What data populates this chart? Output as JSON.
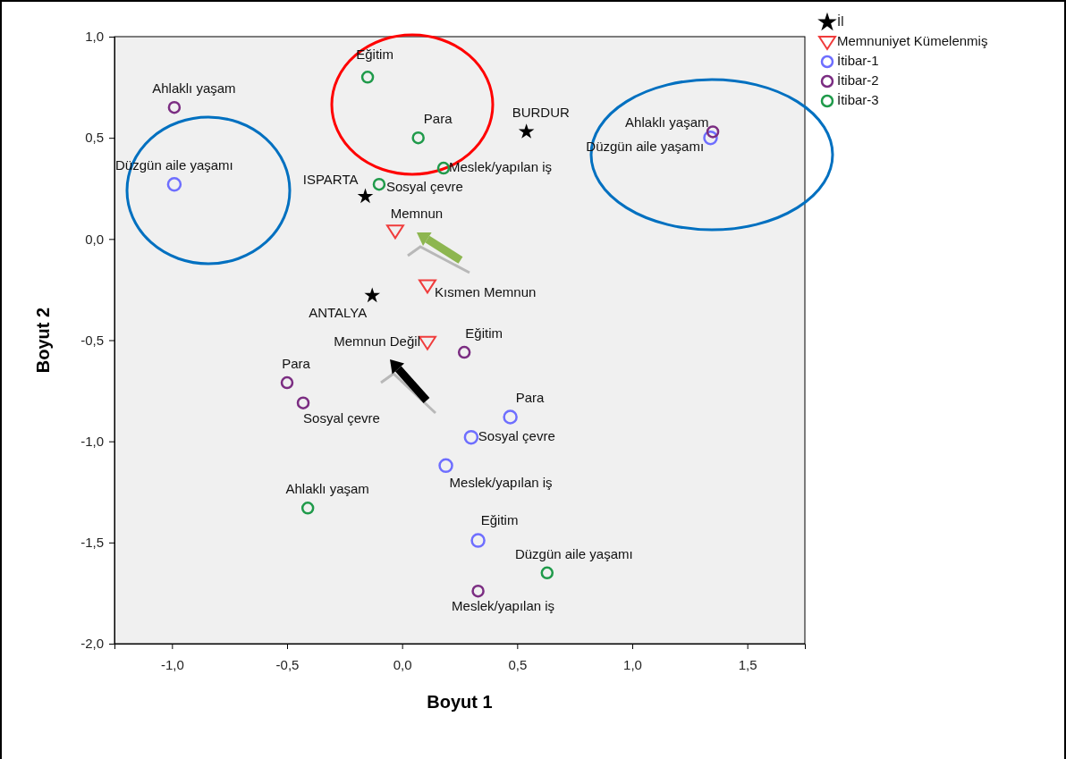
{
  "chart_data": {
    "type": "scatter",
    "xlabel": "Boyut 1",
    "ylabel": "Boyut 2",
    "xlim": [
      -1.25,
      1.75
    ],
    "ylim": [
      -2.0,
      1.0
    ],
    "xticks": [
      {
        "value": -1,
        "label": "-1,0"
      },
      {
        "value": -0.5,
        "label": "-0,5"
      },
      {
        "value": 0,
        "label": "0,0"
      },
      {
        "value": 0.5,
        "label": "0,5"
      },
      {
        "value": 1,
        "label": "1,0"
      },
      {
        "value": 1.5,
        "label": "1,5"
      }
    ],
    "yticks": [
      {
        "value": -2,
        "label": "-2,0"
      },
      {
        "value": -1.5,
        "label": "-1,5"
      },
      {
        "value": -1,
        "label": "-1,0"
      },
      {
        "value": -0.5,
        "label": "-0,5"
      },
      {
        "value": 0,
        "label": "0,0"
      },
      {
        "value": 0.5,
        "label": "0,5"
      },
      {
        "value": 1,
        "label": "1,0"
      }
    ],
    "grid": false,
    "legend": "top right",
    "series": [
      {
        "name": "İl",
        "color": "#000000",
        "marker": "star",
        "x": [
          0.54,
          -0.16,
          -0.13
        ],
        "values": [
          0.53,
          0.21,
          -0.28
        ]
      },
      {
        "name": "Memnuniyet Kümelenmiş",
        "color": "#f03c3c",
        "marker": "triangle",
        "x": [
          -0.03,
          0.11,
          0.11
        ],
        "values": [
          0.04,
          -0.23,
          -0.51
        ]
      },
      {
        "name": "İtibar-1",
        "color": "#6e6eff",
        "marker": "circle",
        "x": [
          -0.99,
          1.34,
          0.47,
          0.3,
          0.19,
          0.33
        ],
        "values": [
          0.27,
          0.5,
          -0.88,
          -0.98,
          -1.12,
          -1.49
        ]
      },
      {
        "name": "İtibar-2",
        "color": "#7b2d82",
        "marker": "circle",
        "x": [
          -0.99,
          1.35,
          0.27,
          -0.5,
          -0.43,
          0.33
        ],
        "values": [
          0.65,
          0.53,
          -0.56,
          -0.71,
          -0.81,
          -1.74
        ]
      },
      {
        "name": "İtibar-3",
        "color": "#1f9a4a",
        "marker": "circle",
        "x": [
          -0.15,
          0.07,
          0.18,
          -0.1,
          -0.41,
          0.63
        ],
        "values": [
          0.8,
          0.5,
          0.35,
          0.27,
          -1.33,
          -1.65
        ]
      }
    ],
    "annotations": [
      {
        "text": "BURDUR",
        "x": 0.54,
        "y": 0.53
      },
      {
        "text": "ISPARTA",
        "x": -0.16,
        "y": 0.21
      },
      {
        "text": "ANTALYA",
        "x": -0.13,
        "y": -0.28
      },
      {
        "text": "Memnun",
        "x": -0.03,
        "y": 0.04
      },
      {
        "text": "Kısmen Memnun",
        "x": 0.11,
        "y": -0.23
      },
      {
        "text": "Memnun Değil",
        "x": 0.11,
        "y": -0.51
      },
      {
        "text": "Düzgün aile yaşamı",
        "x": -0.99,
        "y": 0.27
      },
      {
        "text": "Ahlaklı yaşam",
        "x": 1.34,
        "y": 0.5
      },
      {
        "text": "Para",
        "x": 0.47,
        "y": -0.88
      },
      {
        "text": "Sosyal çevre",
        "x": 0.3,
        "y": -0.98
      },
      {
        "text": "Meslek/yapılan iş",
        "x": 0.19,
        "y": -1.12
      },
      {
        "text": "Eğitim",
        "x": 0.33,
        "y": -1.49
      },
      {
        "text": "Ahlaklı yaşam",
        "x": -0.99,
        "y": 0.65
      },
      {
        "text": "Düzgün aile yaşamı",
        "x": 1.35,
        "y": 0.53
      },
      {
        "text": "Eğitim",
        "x": 0.27,
        "y": -0.56
      },
      {
        "text": "Para",
        "x": -0.5,
        "y": -0.71
      },
      {
        "text": "Sosyal çevre",
        "x": -0.43,
        "y": -0.81
      },
      {
        "text": "Meslek/yapılan iş",
        "x": 0.33,
        "y": -1.74
      },
      {
        "text": "Eğitim",
        "x": -0.15,
        "y": 0.8
      },
      {
        "text": "Para",
        "x": 0.07,
        "y": 0.5
      },
      {
        "text": "Meslek/yapılan iş",
        "x": 0.18,
        "y": 0.35
      },
      {
        "text": "Sosyal çevre",
        "x": -0.1,
        "y": 0.27
      },
      {
        "text": "Ahlaklı yaşam",
        "x": -0.41,
        "y": -1.33
      },
      {
        "text": "Düzgün aile yaşamı",
        "x": 0.63,
        "y": -1.65
      }
    ]
  }
}
